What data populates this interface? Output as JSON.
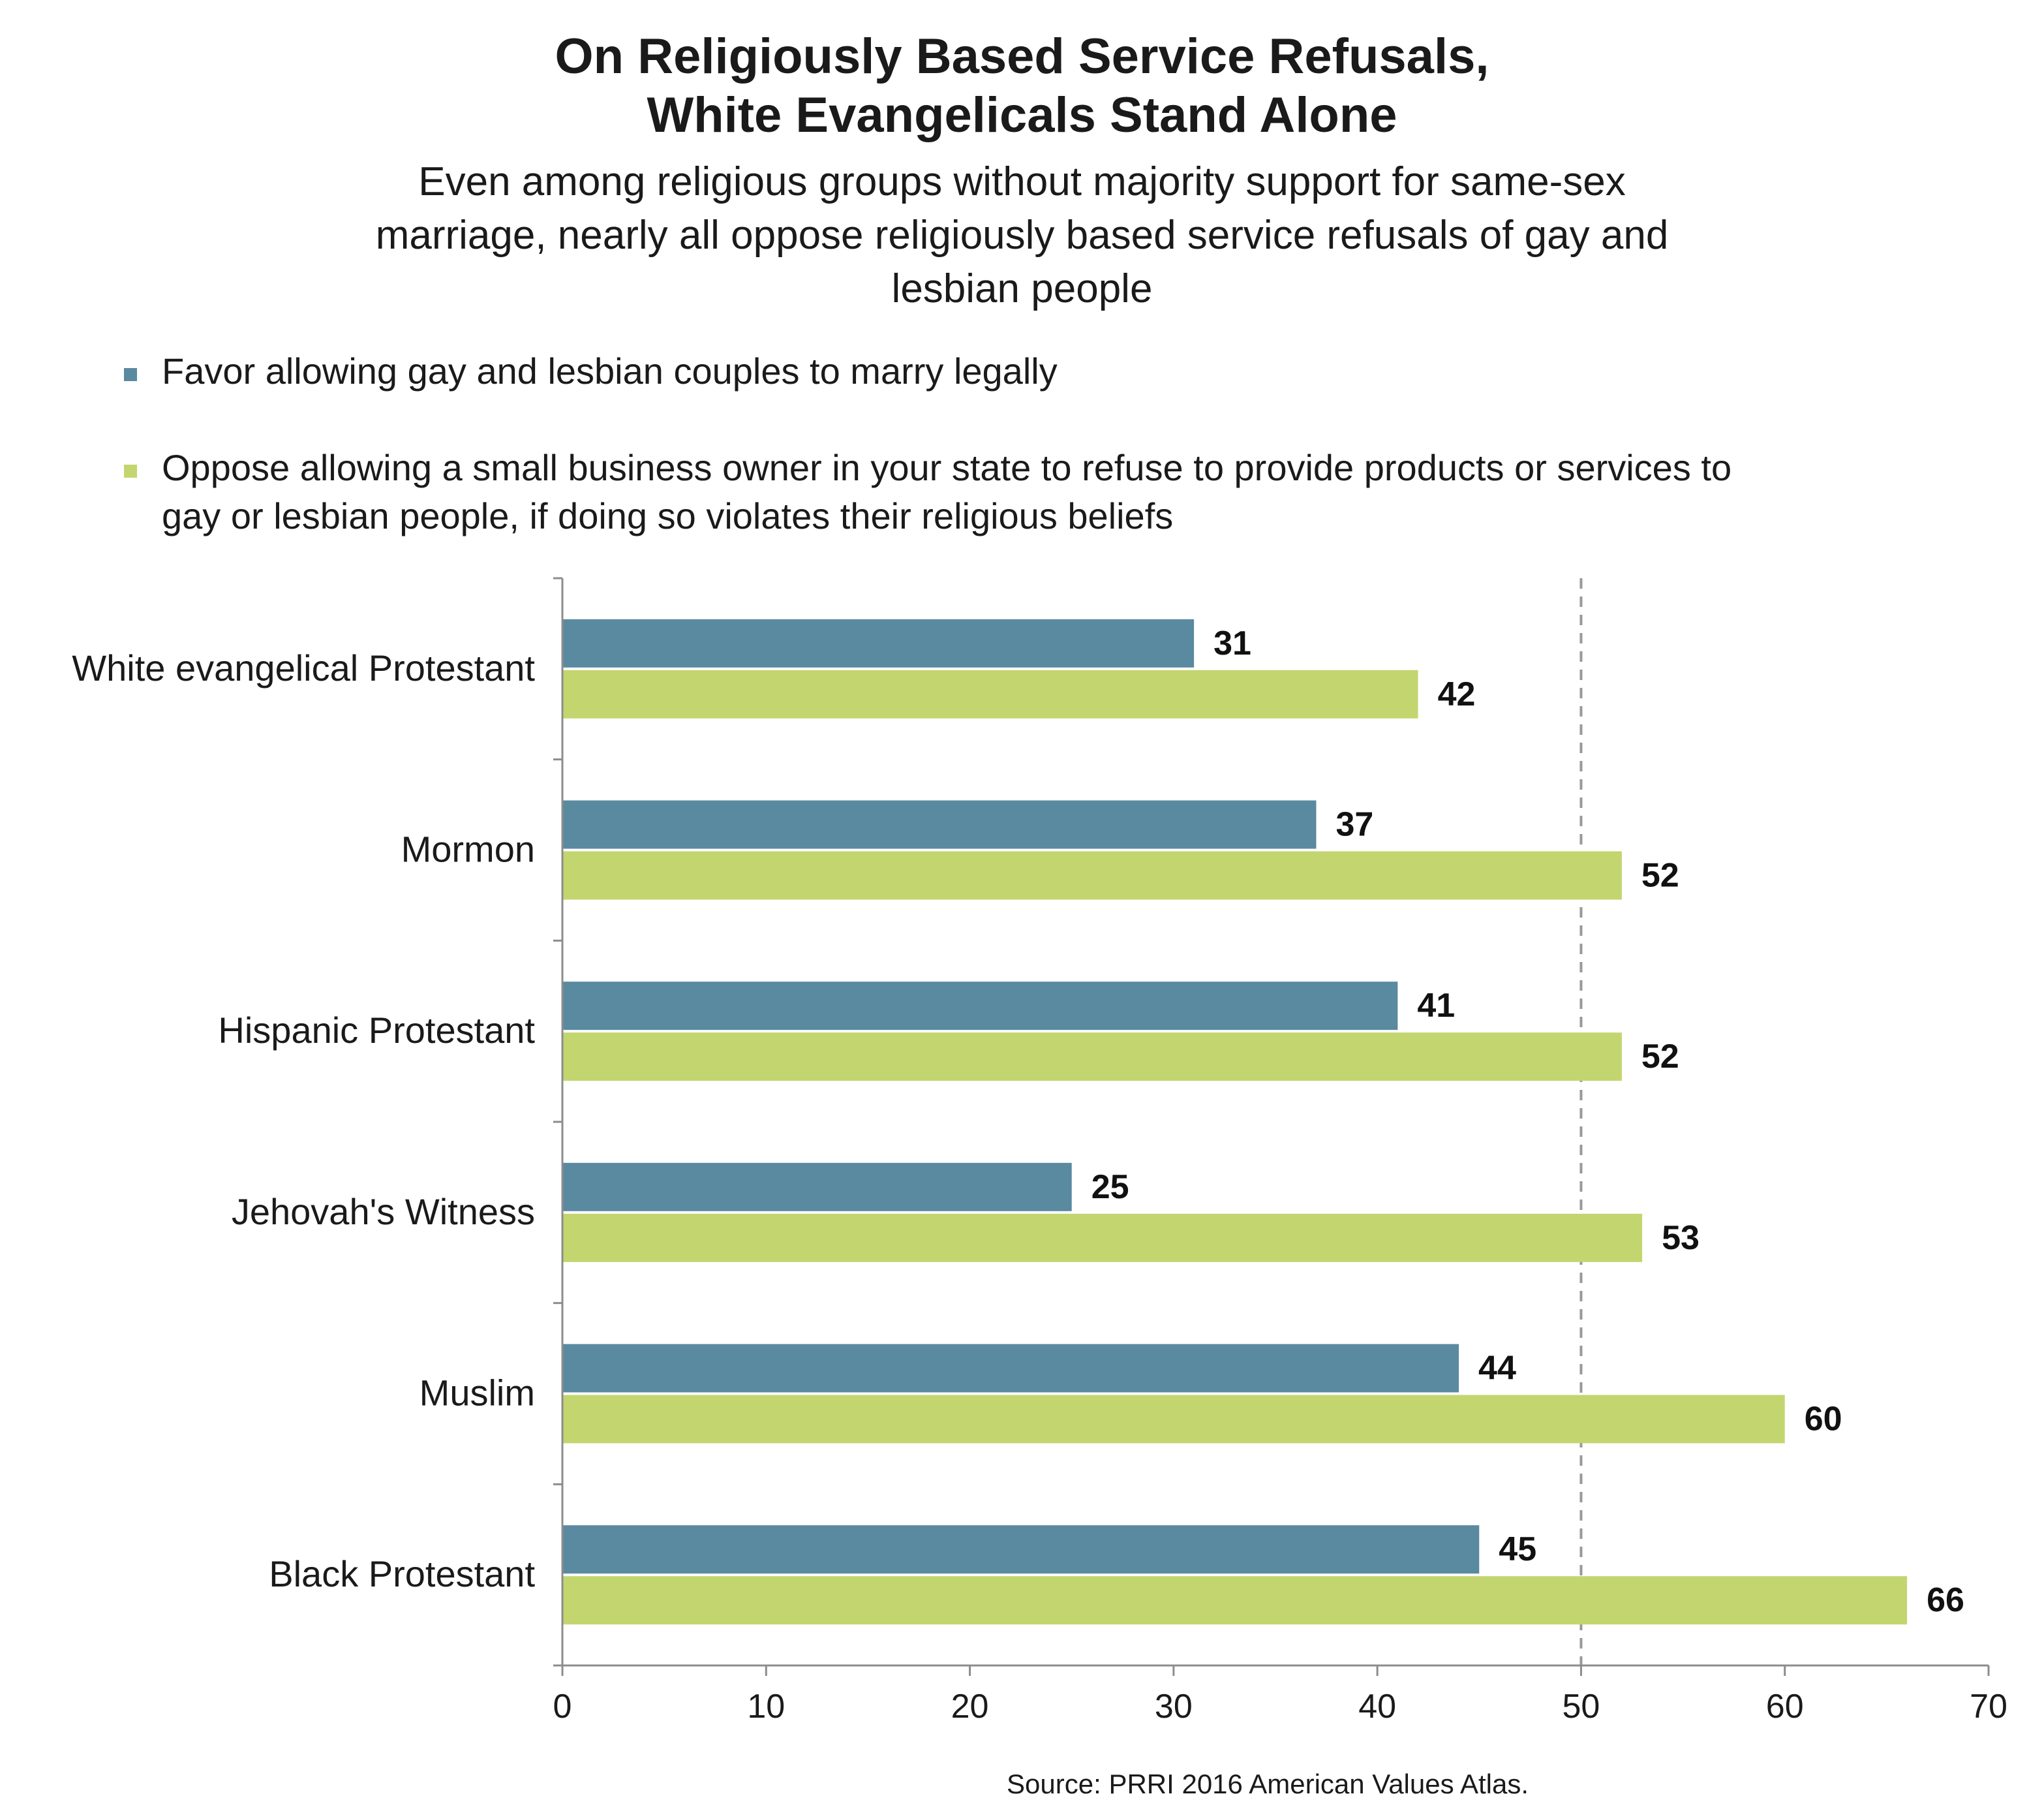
{
  "title_lines": [
    "On Religiously Based Service Refusals,",
    "White Evangelicals Stand Alone"
  ],
  "subtitle_lines": [
    "Even among religious groups without majority support for same-sex",
    "marriage, nearly all oppose religiously based service refusals of gay and",
    "lesbian people"
  ],
  "legend": [
    {
      "lines": [
        "Favor allowing gay and lesbian couples to marry legally"
      ],
      "color": "#5a8aa0"
    },
    {
      "lines": [
        "Oppose allowing a small business owner in your state to refuse to provide products or services to",
        "gay or lesbian people, if doing so violates their religious beliefs"
      ],
      "color": "#c3d56f"
    }
  ],
  "source": "Source: PRRI 2016 American Values Atlas.",
  "chart_data": {
    "type": "bar",
    "orientation": "horizontal",
    "categories": [
      "White evangelical Protestant",
      "Mormon",
      "Hispanic Protestant",
      "Jehovah's Witness",
      "Muslim",
      "Black Protestant"
    ],
    "series": [
      {
        "name": "Favor allowing gay and lesbian couples to marry legally",
        "values": [
          31,
          37,
          41,
          25,
          44,
          45
        ],
        "color": "#5a8aa0"
      },
      {
        "name": "Oppose allowing a small business owner in your state to refuse to provide products or services to gay or lesbian people, if doing so violates their religious beliefs",
        "values": [
          42,
          52,
          52,
          53,
          60,
          66
        ],
        "color": "#c3d56f"
      }
    ],
    "xlim": [
      0,
      70
    ],
    "xticks": [
      0,
      10,
      20,
      30,
      40,
      50,
      60,
      70
    ],
    "reference_line": 50,
    "grid": false
  }
}
